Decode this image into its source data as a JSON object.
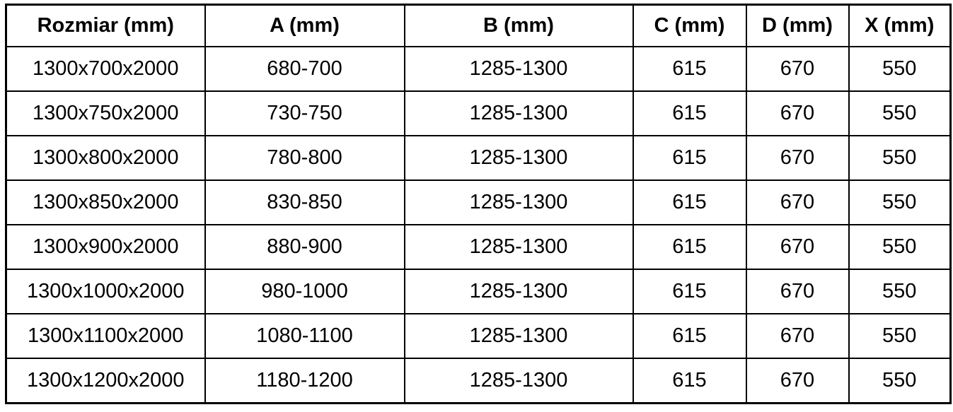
{
  "chart_data": {
    "type": "table",
    "columns": [
      "Rozmiar (mm)",
      "A (mm)",
      "B (mm)",
      "C (mm)",
      "D (mm)",
      "X (mm)"
    ],
    "rows": [
      [
        "1300x700x2000",
        "680-700",
        "1285-1300",
        "615",
        "670",
        "550"
      ],
      [
        "1300x750x2000",
        "730-750",
        "1285-1300",
        "615",
        "670",
        "550"
      ],
      [
        "1300x800x2000",
        "780-800",
        "1285-1300",
        "615",
        "670",
        "550"
      ],
      [
        "1300x850x2000",
        "830-850",
        "1285-1300",
        "615",
        "670",
        "550"
      ],
      [
        "1300x900x2000",
        "880-900",
        "1285-1300",
        "615",
        "670",
        "550"
      ],
      [
        "1300x1000x2000",
        "980-1000",
        "1285-1300",
        "615",
        "670",
        "550"
      ],
      [
        "1300x1100x2000",
        "1080-1100",
        "1285-1300",
        "615",
        "670",
        "550"
      ],
      [
        "1300x1200x2000",
        "1180-1200",
        "1285-1300",
        "615",
        "670",
        "550"
      ]
    ]
  },
  "colors": {
    "border": "#000000",
    "text": "#000000",
    "background": "#ffffff"
  }
}
